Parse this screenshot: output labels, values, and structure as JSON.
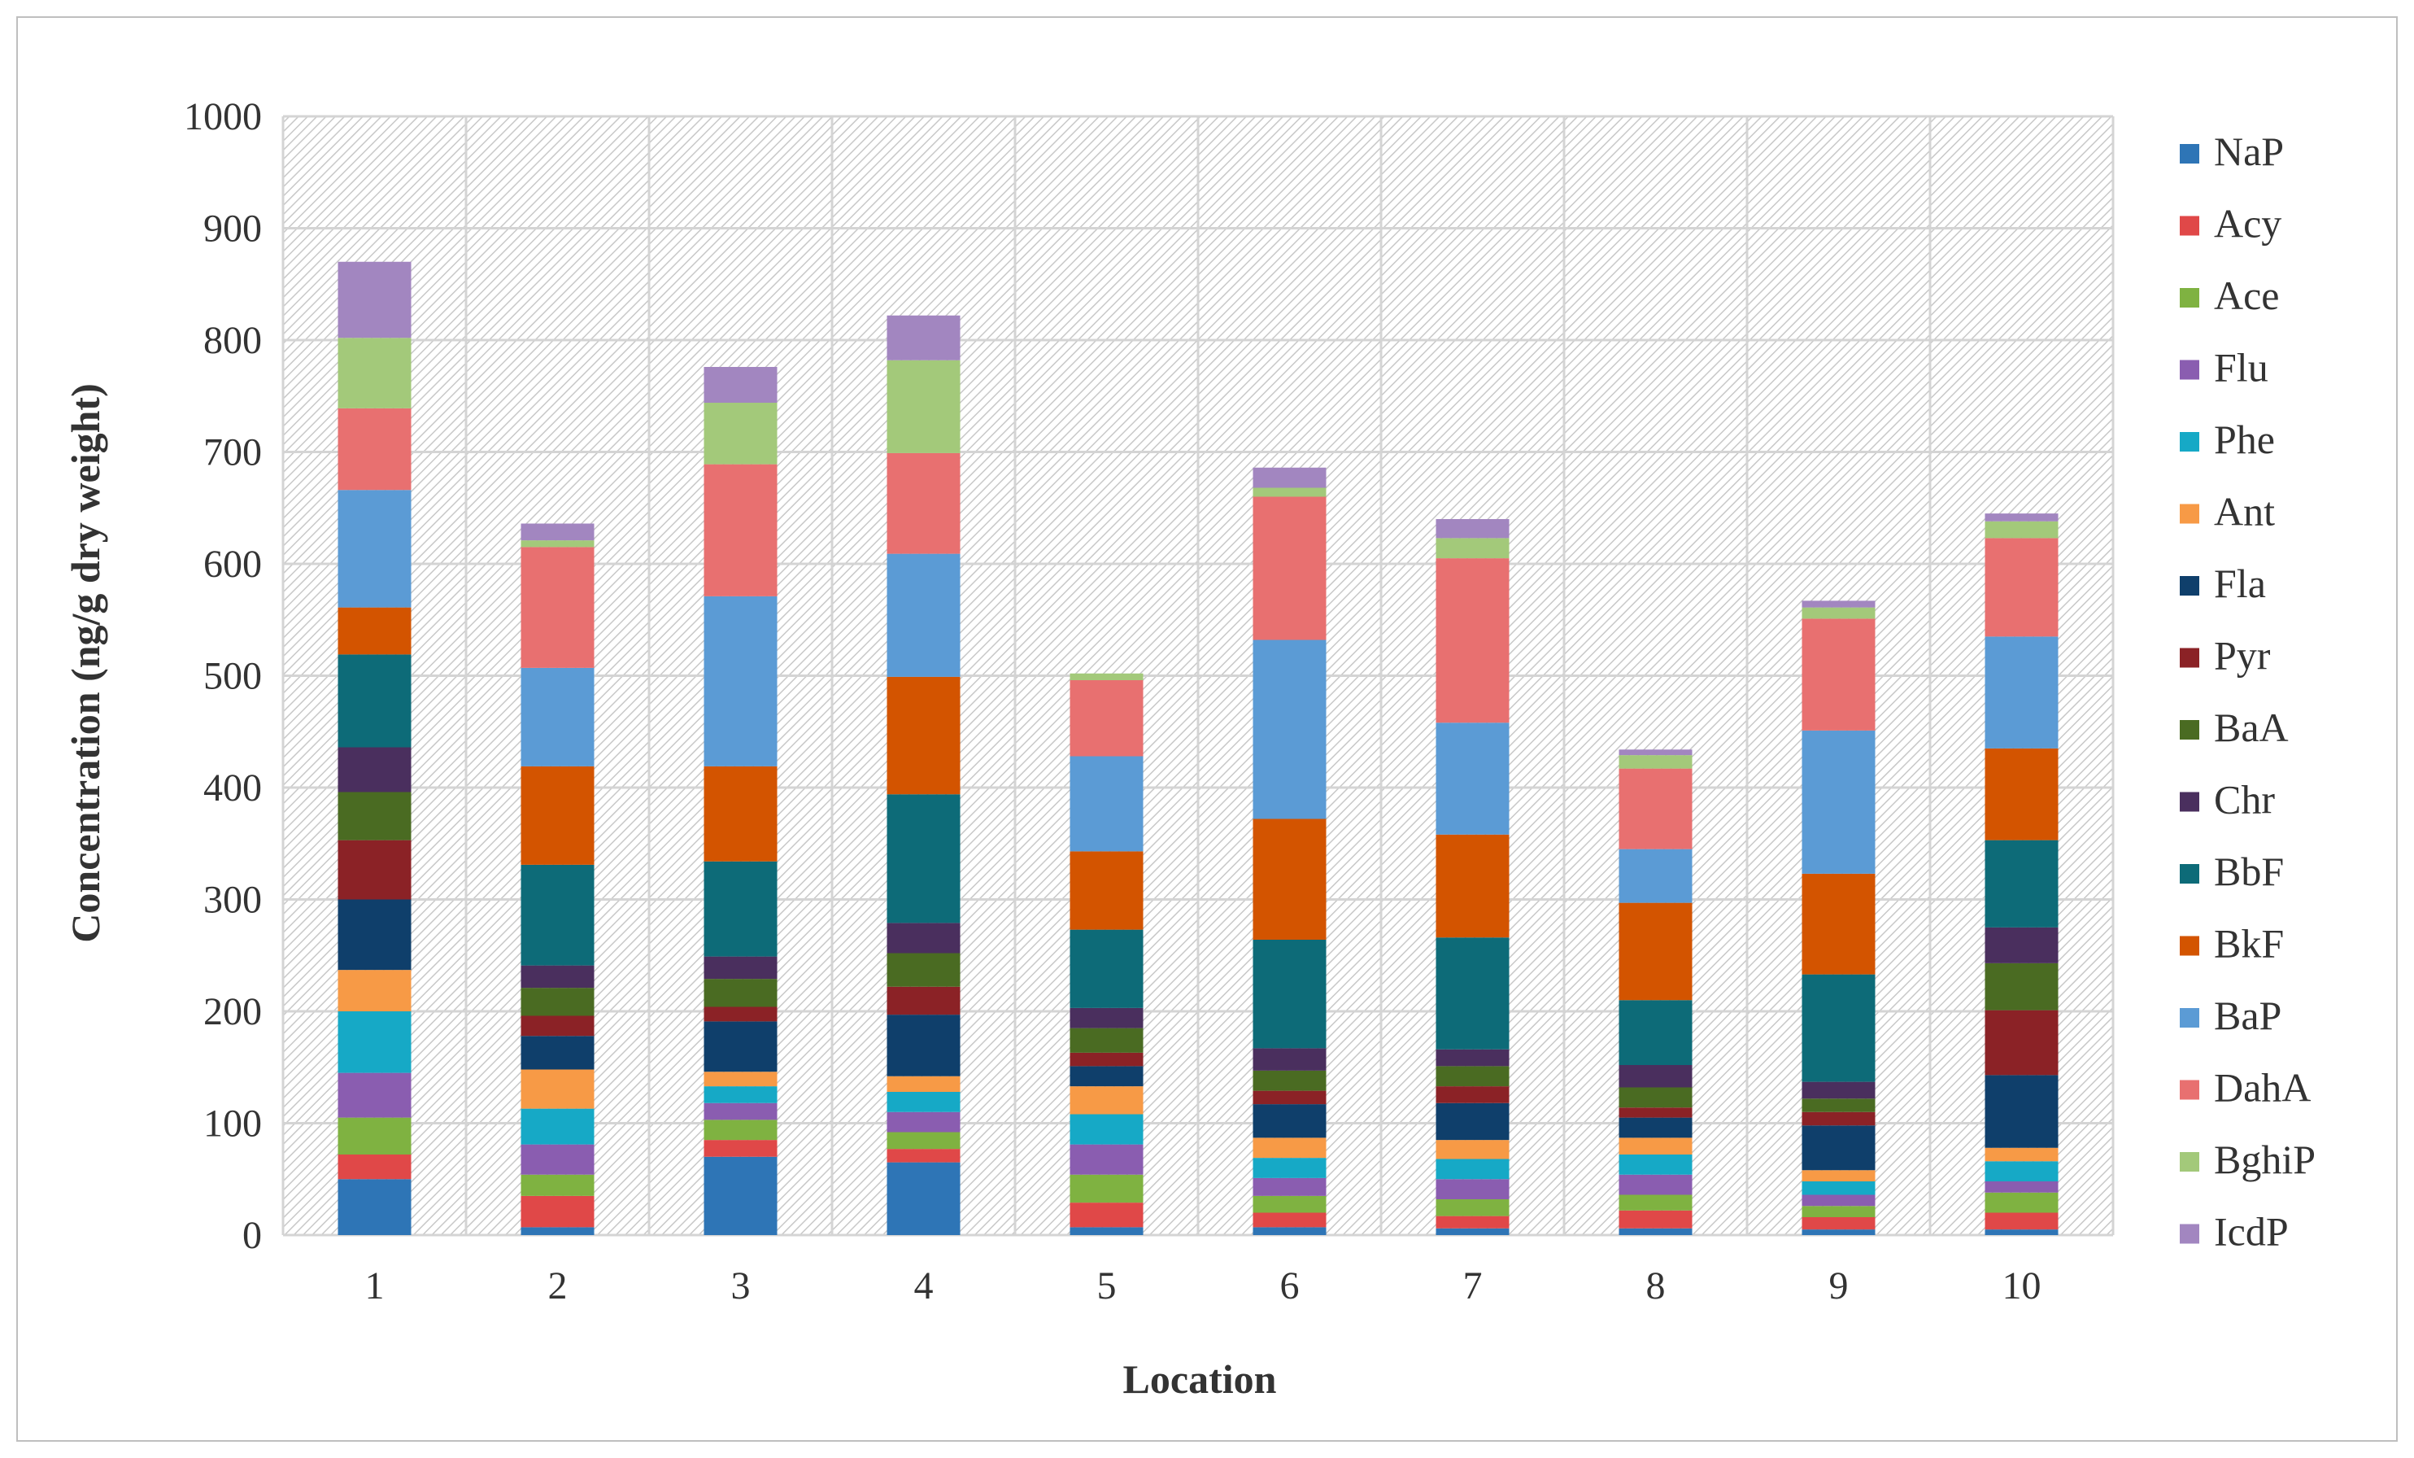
{
  "chart_data": {
    "type": "bar",
    "stacked": true,
    "xlabel": "Location",
    "ylabel": "Concentration (ng/g dry weight)",
    "ylim": [
      0,
      1000
    ],
    "yticks": [
      0,
      100,
      200,
      300,
      400,
      500,
      600,
      700,
      800,
      900,
      1000
    ],
    "grid": true,
    "legend_position": "right",
    "categories": [
      "1",
      "2",
      "3",
      "4",
      "5",
      "6",
      "7",
      "8",
      "9",
      "10"
    ],
    "series": [
      {
        "name": "NaP",
        "color": "#2e75b6",
        "values": [
          50,
          7,
          70,
          65,
          7,
          7,
          6,
          6,
          5,
          5
        ]
      },
      {
        "name": "Acy",
        "color": "#e04848",
        "values": [
          22,
          28,
          15,
          12,
          22,
          13,
          11,
          16,
          11,
          15
        ]
      },
      {
        "name": "Ace",
        "color": "#7fb241",
        "values": [
          33,
          19,
          18,
          15,
          25,
          15,
          15,
          14,
          10,
          18
        ]
      },
      {
        "name": "Flu",
        "color": "#8a5db0",
        "values": [
          40,
          27,
          15,
          18,
          27,
          16,
          18,
          18,
          10,
          10
        ]
      },
      {
        "name": "Phe",
        "color": "#16a9c6",
        "values": [
          55,
          32,
          15,
          18,
          27,
          18,
          18,
          18,
          12,
          18
        ]
      },
      {
        "name": "Ant",
        "color": "#f79a46",
        "values": [
          37,
          35,
          13,
          14,
          25,
          18,
          17,
          15,
          10,
          12
        ]
      },
      {
        "name": "Fla",
        "color": "#0f3f6b",
        "values": [
          63,
          30,
          45,
          55,
          18,
          30,
          33,
          18,
          40,
          65
        ]
      },
      {
        "name": "Pyr",
        "color": "#8b2226",
        "values": [
          53,
          18,
          13,
          25,
          12,
          12,
          15,
          9,
          12,
          58
        ]
      },
      {
        "name": "BaA",
        "color": "#4a6b22",
        "values": [
          43,
          25,
          25,
          30,
          22,
          18,
          18,
          18,
          12,
          42
        ]
      },
      {
        "name": "Chr",
        "color": "#4a2f5e",
        "values": [
          40,
          20,
          20,
          27,
          18,
          20,
          15,
          20,
          15,
          32
        ]
      },
      {
        "name": "BbF",
        "color": "#0d6b78",
        "values": [
          83,
          90,
          85,
          115,
          70,
          97,
          100,
          58,
          96,
          78
        ]
      },
      {
        "name": "BkF",
        "color": "#d35400",
        "values": [
          42,
          88,
          85,
          105,
          70,
          108,
          92,
          87,
          90,
          82
        ]
      },
      {
        "name": "BaP",
        "color": "#5b9bd5",
        "values": [
          105,
          88,
          152,
          110,
          85,
          160,
          100,
          48,
          128,
          100
        ]
      },
      {
        "name": "DahA",
        "color": "#e87070",
        "values": [
          73,
          108,
          118,
          90,
          68,
          128,
          147,
          72,
          100,
          88
        ]
      },
      {
        "name": "BghiP",
        "color": "#a3c97a",
        "values": [
          63,
          6,
          55,
          83,
          6,
          8,
          18,
          12,
          10,
          15
        ]
      },
      {
        "name": "IcdP",
        "color": "#a286c0",
        "values": [
          68,
          15,
          32,
          40,
          0,
          18,
          17,
          5,
          6,
          7
        ]
      }
    ]
  }
}
